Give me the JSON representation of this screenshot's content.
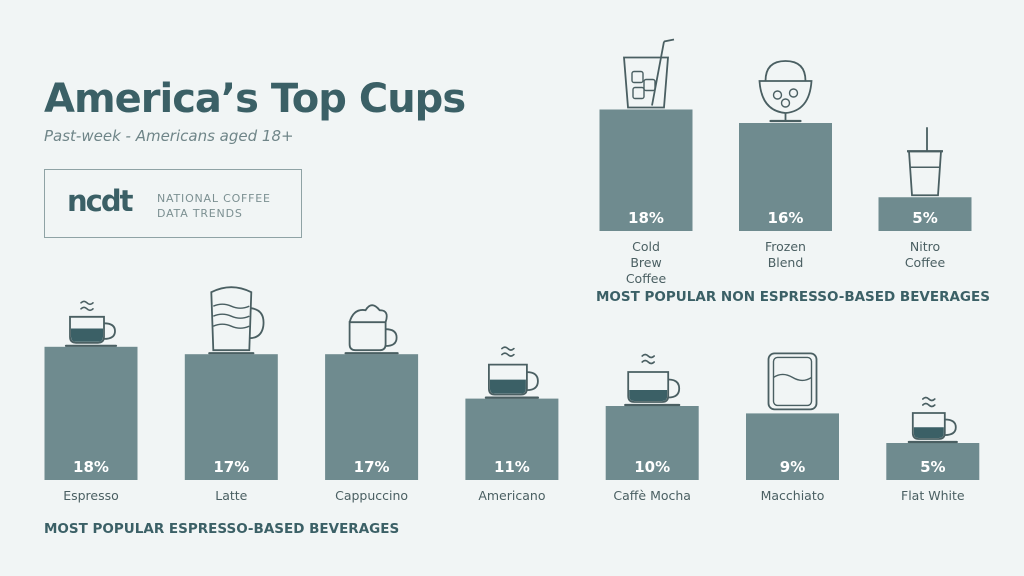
{
  "header": {
    "title": "America’s Top Cups",
    "subtitle": "Past-week - Americans aged 18+"
  },
  "logo": {
    "mark": "ncdt",
    "line1": "NATIONAL COFFEE",
    "line2": "DATA TRENDS"
  },
  "colors": {
    "bar": "#6f8b8f",
    "title": "#3b6066",
    "text": "#4a5f62",
    "icon_stroke": "#4a5f62",
    "coffee_fill": "#3b6066",
    "background": "#f1f5f5"
  },
  "chart_data": [
    {
      "type": "bar",
      "title": "MOST POPULAR ESPRESSO-BASED BEVERAGES",
      "categories": [
        "Espresso",
        "Latte",
        "Cappuccino",
        "Americano",
        "Caffè Mocha",
        "Macchiato",
        "Flat White"
      ],
      "values": [
        18,
        17,
        17,
        11,
        10,
        9,
        5
      ],
      "value_labels": [
        "18%",
        "17%",
        "17%",
        "11%",
        "10%",
        "9%",
        "5%"
      ],
      "icons": [
        "espresso-cup-icon",
        "latte-glass-icon",
        "cappuccino-cup-icon",
        "americano-cup-icon",
        "mocha-cup-icon",
        "macchiato-glass-icon",
        "flat-white-cup-icon"
      ],
      "unit": "%"
    },
    {
      "type": "bar",
      "title": "MOST POPULAR NON ESPRESSO-BASED BEVERAGES",
      "categories": [
        "Cold Brew Coffee",
        "Frozen Blend",
        "Nitro Coffee"
      ],
      "value_labels": [
        "18%",
        "16%",
        "5%"
      ],
      "values": [
        18,
        16,
        5
      ],
      "icons": [
        "cold-brew-glass-icon",
        "frozen-blend-glass-icon",
        "nitro-cup-icon"
      ],
      "unit": "%"
    }
  ]
}
